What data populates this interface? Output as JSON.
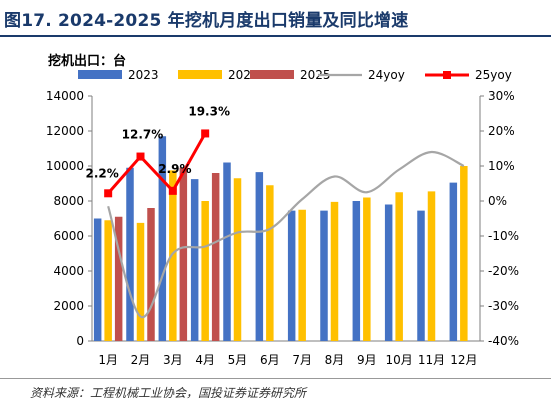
{
  "title": "图17. 2024-2025 年挖机月度出口销量及同比增速",
  "unit_label": "挖机出口：台",
  "source": "资料来源：工程机械工业协会，国投证券证券研究所",
  "chart_data": {
    "type": "bar",
    "categories": [
      "1月",
      "2月",
      "3月",
      "4月",
      "5月",
      "6月",
      "7月",
      "8月",
      "9月",
      "10月",
      "11月",
      "12月"
    ],
    "series": [
      {
        "name": "2023",
        "kind": "bar",
        "axis": "left",
        "color": "#4472c4",
        "values": [
          7000,
          9900,
          11700,
          9250,
          10200,
          9650,
          7450,
          7450,
          8000,
          7800,
          7450,
          9050
        ]
      },
      {
        "name": "2024",
        "kind": "bar",
        "axis": "left",
        "color": "#ffc000",
        "values": [
          6900,
          6750,
          9750,
          8000,
          9300,
          8900,
          7500,
          7950,
          8200,
          8500,
          8550,
          10000
        ]
      },
      {
        "name": "2025",
        "kind": "bar",
        "axis": "left",
        "color": "#c0504d",
        "values": [
          7100,
          7600,
          9900,
          9600,
          null,
          null,
          null,
          null,
          null,
          null,
          null,
          null
        ]
      },
      {
        "name": "24yoy",
        "kind": "line",
        "axis": "right",
        "color": "#a6a6a6",
        "values": [
          -1.5,
          -33,
          -15,
          -13,
          -9,
          -8,
          0.5,
          7,
          2.5,
          9,
          14,
          10
        ]
      },
      {
        "name": "25yoy",
        "kind": "line-marker",
        "axis": "right",
        "color": "#ff0000",
        "values": [
          2.2,
          12.7,
          2.9,
          19.3,
          null,
          null,
          null,
          null,
          null,
          null,
          null,
          null
        ]
      }
    ],
    "data_labels": [
      "2.2%",
      "12.7%",
      "2.9%",
      "19.3%"
    ],
    "y_left": {
      "min": 0,
      "max": 14000,
      "ticks": [
        "0",
        "2000",
        "4000",
        "6000",
        "8000",
        "10000",
        "12000",
        "14000"
      ]
    },
    "y_right": {
      "min": -40,
      "max": 30,
      "ticks": [
        "-40%",
        "-30%",
        "-20%",
        "-10%",
        "0%",
        "10%",
        "20%",
        "30%"
      ]
    },
    "legend_position": "top",
    "grid": false
  }
}
